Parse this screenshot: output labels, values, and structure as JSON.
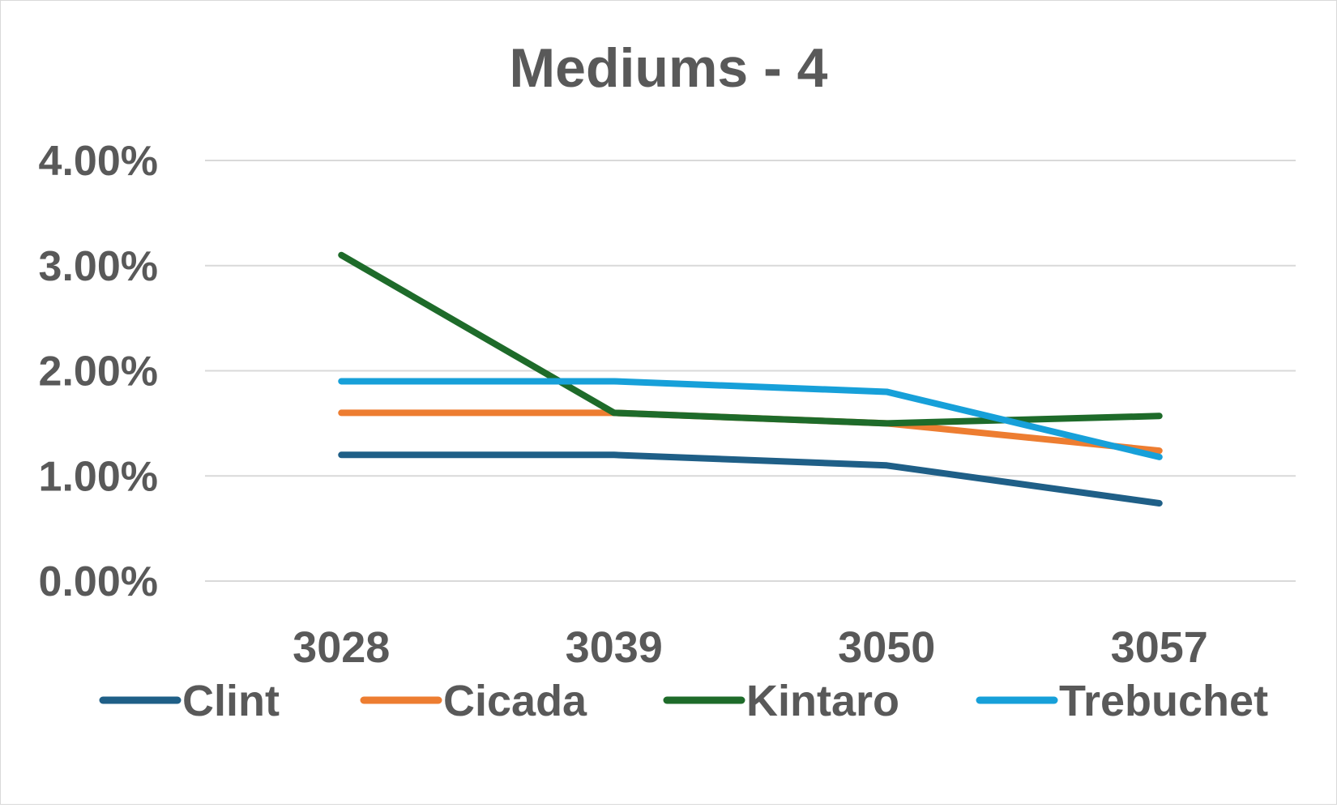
{
  "chart_data": {
    "type": "line",
    "title": "Mediums - 4",
    "xlabel": "",
    "ylabel": "",
    "categories": [
      "3028",
      "3039",
      "3050",
      "3057"
    ],
    "y_ticks": [
      "0.00%",
      "1.00%",
      "2.00%",
      "3.00%",
      "4.00%"
    ],
    "ylim": [
      0,
      4
    ],
    "y_unit": "%",
    "grid": true,
    "legend_position": "bottom",
    "series": [
      {
        "name": "Clint",
        "color": "#1f5f87",
        "values": [
          1.2,
          1.2,
          1.1,
          0.74
        ]
      },
      {
        "name": "Cicada",
        "color": "#ed7d31",
        "values": [
          1.6,
          1.6,
          1.5,
          1.24
        ]
      },
      {
        "name": "Kintaro",
        "color": "#1e6b2a",
        "values": [
          3.1,
          1.6,
          1.5,
          1.57
        ]
      },
      {
        "name": "Trebuchet",
        "color": "#17a0d9",
        "values": [
          1.9,
          1.9,
          1.8,
          1.18
        ]
      }
    ]
  }
}
